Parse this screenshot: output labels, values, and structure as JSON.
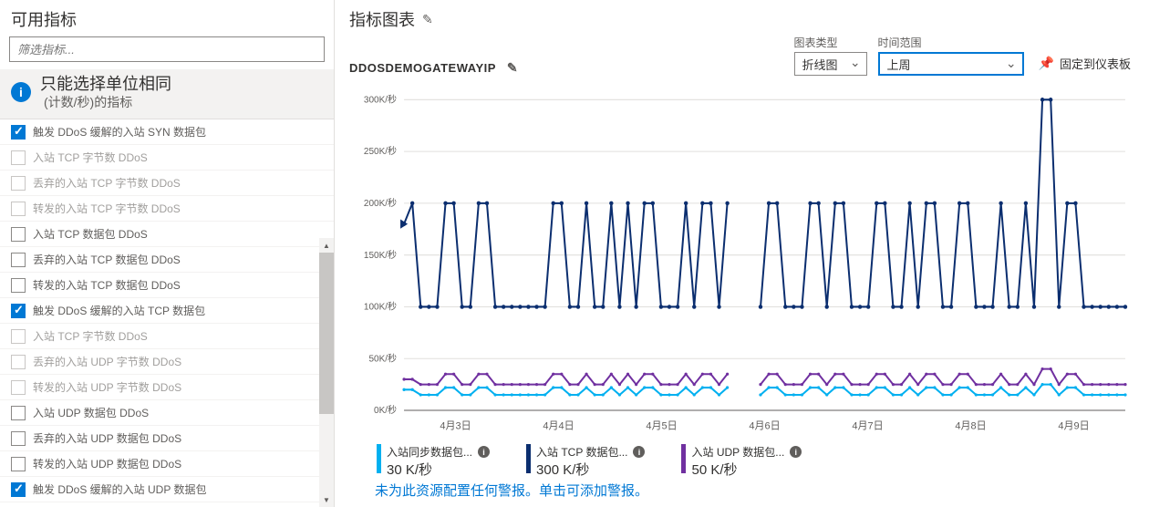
{
  "sidebar": {
    "title": "可用指标",
    "search_placeholder": "筛选指标...",
    "info_main": "只能选择单位相同",
    "info_sub": "(计数/秒)的指标",
    "metrics": [
      {
        "label": "触发 DDoS 缓解的入站 SYN 数据包",
        "checked": true,
        "disabled": false
      },
      {
        "label": "入站 TCP 字节数 DDoS",
        "checked": false,
        "disabled": true
      },
      {
        "label": "丢弃的入站 TCP 字节数 DDoS",
        "checked": false,
        "disabled": true
      },
      {
        "label": "转发的入站 TCP 字节数 DDoS",
        "checked": false,
        "disabled": true
      },
      {
        "label": "入站 TCP 数据包 DDoS",
        "checked": false,
        "disabled": false
      },
      {
        "label": "丢弃的入站 TCP 数据包 DDoS",
        "checked": false,
        "disabled": false
      },
      {
        "label": "转发的入站 TCP 数据包 DDoS",
        "checked": false,
        "disabled": false
      },
      {
        "label": "触发 DDoS 缓解的入站 TCP 数据包",
        "checked": true,
        "disabled": false
      },
      {
        "label": "入站 TCP 字节数 DDoS",
        "checked": false,
        "disabled": true
      },
      {
        "label": "丢弃的入站 UDP 字节数 DDoS",
        "checked": false,
        "disabled": true
      },
      {
        "label": "转发的入站 UDP 字节数 DDoS",
        "checked": false,
        "disabled": true
      },
      {
        "label": "入站 UDP 数据包 DDoS",
        "checked": false,
        "disabled": false
      },
      {
        "label": "丢弃的入站 UDP 数据包 DDoS",
        "checked": false,
        "disabled": false
      },
      {
        "label": "转发的入站 UDP 数据包 DDoS",
        "checked": false,
        "disabled": false
      },
      {
        "label": "触发 DDoS 缓解的入站 UDP 数据包",
        "checked": true,
        "disabled": false
      }
    ]
  },
  "main": {
    "title": "指标图表",
    "resource": "DDOSDEMOGATEWAYIP",
    "chart_type_label": "图表类型",
    "chart_type_value": "折线图",
    "time_range_label": "时间范围",
    "time_range_value": "上周",
    "pin_label": "固定到仪表板",
    "alert_text": "未为此资源配置任何警报。单击可添加警报。"
  },
  "chart": {
    "ylabels": [
      "300K/秒",
      "250K/秒",
      "200K/秒",
      "150K/秒",
      "100K/秒",
      "50K/秒",
      "0K/秒"
    ],
    "yvals": [
      300,
      250,
      200,
      150,
      100,
      50,
      0
    ],
    "xlabels": [
      "4月3日",
      "4月4日",
      "4月5日",
      "4月6日",
      "4月7日",
      "4月8日",
      "4月9日"
    ],
    "colors": {
      "series1": "#0b2e6f",
      "series2": "#00b0f0",
      "series3": "#7030a0",
      "grid": "#e1dfdd",
      "axis": "#605e5c",
      "text": "#605e5c"
    },
    "series1_data": [
      180,
      200,
      100,
      100,
      100,
      200,
      200,
      100,
      100,
      200,
      200,
      100,
      100,
      100,
      100,
      100,
      100,
      100,
      200,
      200,
      100,
      100,
      200,
      100,
      100,
      200,
      100,
      200,
      100,
      200,
      200,
      100,
      100,
      100,
      200,
      100,
      200,
      200,
      100,
      200,
      200,
      100,
      100,
      100,
      200,
      200,
      100,
      100,
      100,
      200,
      200,
      100,
      200,
      200,
      100,
      100,
      100,
      200,
      200,
      100,
      100,
      200,
      100,
      200,
      200,
      100,
      100,
      200,
      200,
      100,
      100,
      100,
      200,
      100,
      100,
      200,
      100,
      300,
      300,
      100,
      200,
      200,
      100,
      100,
      100,
      100,
      100,
      100
    ],
    "series2_data": [
      20,
      20,
      15,
      15,
      15,
      22,
      22,
      15,
      15,
      22,
      22,
      15,
      15,
      15,
      15,
      15,
      15,
      15,
      22,
      22,
      15,
      15,
      22,
      15,
      15,
      22,
      15,
      22,
      15,
      22,
      22,
      15,
      15,
      15,
      22,
      15,
      22,
      22,
      15,
      22,
      22,
      15,
      15,
      15,
      22,
      22,
      15,
      15,
      15,
      22,
      22,
      15,
      22,
      22,
      15,
      15,
      15,
      22,
      22,
      15,
      15,
      22,
      15,
      22,
      22,
      15,
      15,
      22,
      22,
      15,
      15,
      15,
      22,
      15,
      15,
      22,
      15,
      25,
      25,
      15,
      22,
      22,
      15,
      15,
      15,
      15,
      15,
      15
    ],
    "series3_data": [
      30,
      30,
      25,
      25,
      25,
      35,
      35,
      25,
      25,
      35,
      35,
      25,
      25,
      25,
      25,
      25,
      25,
      25,
      35,
      35,
      25,
      25,
      35,
      25,
      25,
      35,
      25,
      35,
      25,
      35,
      35,
      25,
      25,
      25,
      35,
      25,
      35,
      35,
      25,
      35,
      35,
      25,
      25,
      25,
      35,
      35,
      25,
      25,
      25,
      35,
      35,
      25,
      35,
      35,
      25,
      25,
      25,
      35,
      35,
      25,
      25,
      35,
      25,
      35,
      35,
      25,
      25,
      35,
      35,
      25,
      25,
      25,
      35,
      25,
      25,
      35,
      25,
      40,
      40,
      25,
      35,
      35,
      25,
      25,
      25,
      25,
      25,
      25
    ],
    "gap_start": 40,
    "gap_end": 42
  },
  "legend": [
    {
      "name": "入站同步数据包...",
      "value": "30 K/秒",
      "color": "#00b0f0"
    },
    {
      "name": "入站 TCP 数据包...",
      "value": "300 K/秒",
      "color": "#0b2e6f"
    },
    {
      "name": "入站 UDP 数据包...",
      "value": "50 K/秒",
      "color": "#7030a0"
    }
  ]
}
